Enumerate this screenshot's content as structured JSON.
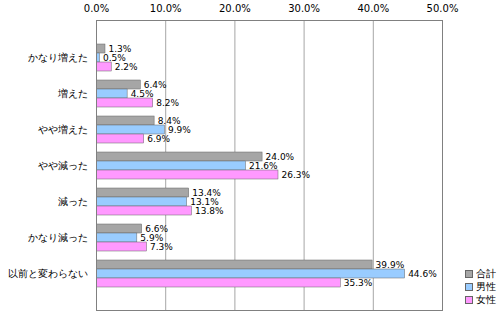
{
  "chart_data": {
    "type": "bar",
    "orientation": "horizontal",
    "categories": [
      "かなり増えた",
      "増えた",
      "やや増えた",
      "やや減った",
      "減った",
      "かなり減った",
      "以前と変わらない"
    ],
    "series": [
      {
        "name": "合計",
        "color": "#a6a6a6",
        "values": [
          1.3,
          6.4,
          8.4,
          24.0,
          13.4,
          6.6,
          39.9
        ],
        "value_labels": [
          "1.3%",
          "6.4%",
          "8.4%",
          "24.0%",
          "13.4%",
          "6.6%",
          "39.9%"
        ]
      },
      {
        "name": "男性",
        "color": "#99ccff",
        "values": [
          0.5,
          4.5,
          9.9,
          21.6,
          13.1,
          5.9,
          44.6
        ],
        "value_labels": [
          "0.5%",
          "4.5%",
          "9.9%",
          "21.6%",
          "13.1%",
          "5.9%",
          "44.6%"
        ]
      },
      {
        "name": "女性",
        "color": "#ff99ff",
        "values": [
          2.2,
          8.2,
          6.9,
          26.3,
          13.8,
          7.3,
          35.3
        ],
        "value_labels": [
          "2.2%",
          "8.2%",
          "6.9%",
          "26.3%",
          "13.8%",
          "7.3%",
          "35.3%"
        ]
      }
    ],
    "xlim": [
      0,
      50
    ],
    "xticks": [
      {
        "value": 0,
        "label": "0.0%"
      },
      {
        "value": 10,
        "label": "10.0%"
      },
      {
        "value": 20,
        "label": "20.0%"
      },
      {
        "value": 30,
        "label": "30.0%"
      },
      {
        "value": 40,
        "label": "40.0%"
      },
      {
        "value": 50,
        "label": "50.0%"
      }
    ],
    "grid": true,
    "data_labels": true,
    "legend": "lower right"
  }
}
